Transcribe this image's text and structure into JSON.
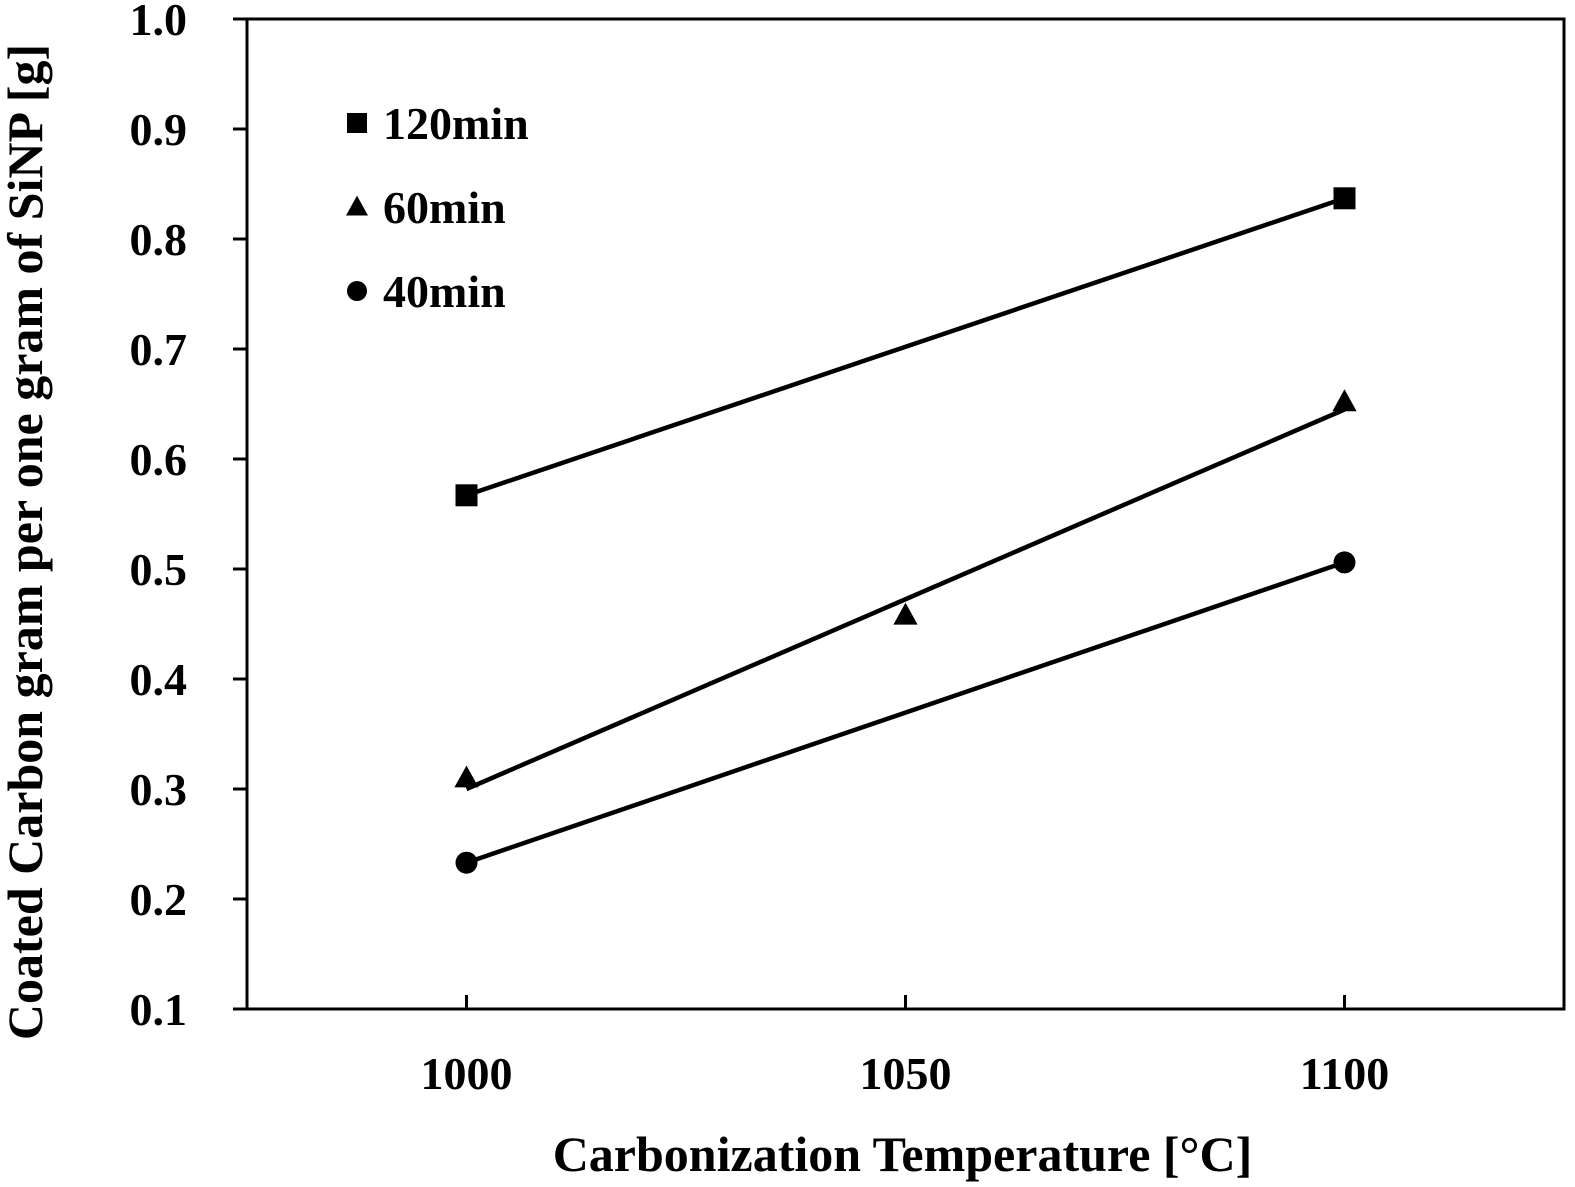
{
  "chart_data": {
    "type": "scatter",
    "title": "",
    "xlabel": "Carbonization Temperature [°C]",
    "ylabel": "Coated Carbon gram per one gram of SiNP [g]",
    "xlim": [
      975,
      1125
    ],
    "ylim": [
      0.1,
      1.0
    ],
    "x_ticks": [
      1000,
      1050,
      1100
    ],
    "x_tick_labels": [
      "1000",
      "1050",
      "1100"
    ],
    "y_ticks": [
      0.1,
      0.2,
      0.3,
      0.4,
      0.5,
      0.6,
      0.7,
      0.8,
      0.9,
      1.0
    ],
    "y_tick_labels": [
      "0.1",
      "0.2",
      "0.3",
      "0.4",
      "0.5",
      "0.6",
      "0.7",
      "0.8",
      "0.9",
      "1.0"
    ],
    "grid": false,
    "legend_position": "top-left",
    "series": [
      {
        "name": "120min",
        "marker": "square",
        "color": "#000000",
        "points": [
          {
            "x": 1000,
            "y": 0.567
          },
          {
            "x": 1100,
            "y": 0.837
          }
        ],
        "trendline": [
          {
            "x": 1000,
            "y": 0.567
          },
          {
            "x": 1100,
            "y": 0.837
          }
        ]
      },
      {
        "name": "60min",
        "marker": "triangle",
        "color": "#000000",
        "points": [
          {
            "x": 1000,
            "y": 0.31
          },
          {
            "x": 1050,
            "y": 0.458
          },
          {
            "x": 1100,
            "y": 0.652
          }
        ],
        "trendline": [
          {
            "x": 1000,
            "y": 0.3
          },
          {
            "x": 1100,
            "y": 0.645
          }
        ]
      },
      {
        "name": "40min",
        "marker": "circle",
        "color": "#000000",
        "points": [
          {
            "x": 1000,
            "y": 0.233
          },
          {
            "x": 1100,
            "y": 0.506
          }
        ],
        "trendline": [
          {
            "x": 1000,
            "y": 0.233
          },
          {
            "x": 1100,
            "y": 0.506
          }
        ]
      }
    ]
  }
}
